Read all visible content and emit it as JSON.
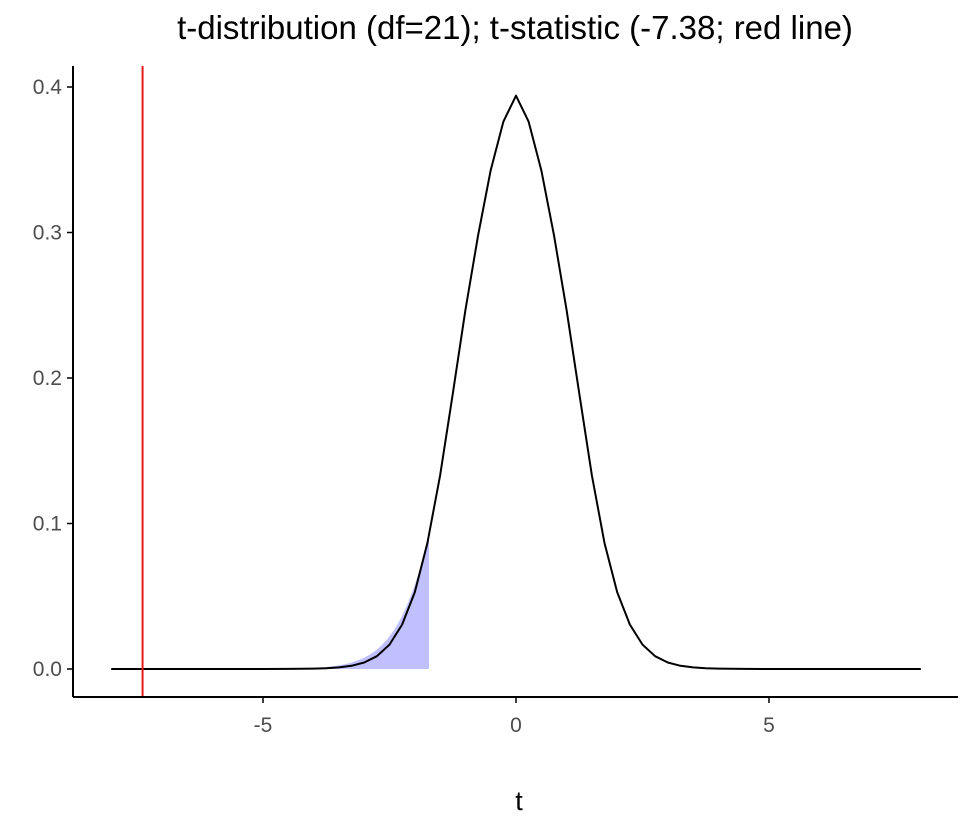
{
  "chart_data": {
    "type": "area",
    "title": "t-distribution (df=21); t-statistic (-7.38; red line)",
    "xlabel": "t",
    "ylabel": "",
    "df": 21,
    "t_statistic": -7.38,
    "xlim": [
      -8,
      8
    ],
    "ylim": [
      0,
      0.4
    ],
    "x_ticks": [
      -5,
      0,
      5
    ],
    "x_tick_labels": [
      "-5",
      "0",
      "5"
    ],
    "y_ticks": [
      0.0,
      0.1,
      0.2,
      0.3,
      0.4
    ],
    "y_tick_labels": [
      "0.0",
      "0.1",
      "0.2",
      "0.3",
      "0.4"
    ],
    "grid": false,
    "legend": "none",
    "series": [
      {
        "x": [
          -8.0,
          -7.5,
          -7.0,
          -6.5,
          -6.0,
          -5.5,
          -5.0,
          -4.5,
          -4.0,
          -3.75,
          -3.5,
          -3.25,
          -3.0,
          -2.75,
          -2.5,
          -2.25,
          -2.0,
          -1.75,
          -1.5,
          -1.25,
          -1.0,
          -0.75,
          -0.5,
          -0.25,
          0.0,
          0.25,
          0.5,
          0.75,
          1.0,
          1.25,
          1.5,
          1.75,
          2.0,
          2.25,
          2.5,
          2.75,
          3.0,
          3.25,
          3.5,
          3.75,
          4.0,
          4.5,
          5.0,
          5.5,
          6.0,
          6.5,
          7.0,
          7.5,
          8.0
        ],
        "y": [
          1e-07,
          2e-07,
          4e-07,
          9e-07,
          3e-06,
          7e-06,
          2e-05,
          7e-05,
          0.0003,
          0.0005,
          0.0011,
          0.0022,
          0.0045,
          0.0088,
          0.0168,
          0.0305,
          0.0528,
          0.0866,
          0.133,
          0.1892,
          0.2467,
          0.2981,
          0.3428,
          0.3762,
          0.394,
          0.3762,
          0.3428,
          0.2981,
          0.2467,
          0.1892,
          0.133,
          0.0866,
          0.0528,
          0.0305,
          0.0168,
          0.0088,
          0.0045,
          0.0022,
          0.0011,
          0.0005,
          0.0003,
          7e-05,
          2e-05,
          7e-06,
          3e-06,
          9e-07,
          4e-07,
          2e-07,
          1e-07
        ]
      }
    ],
    "shaded_region": {
      "x_from": -8,
      "x_to": -1.72
    },
    "colors": {
      "curve": "#000000",
      "reference_line": "#e41a1c",
      "shaded_fill": "#c0c0ff",
      "axis": "#000000",
      "tick_label": "#4d4d4d"
    }
  }
}
